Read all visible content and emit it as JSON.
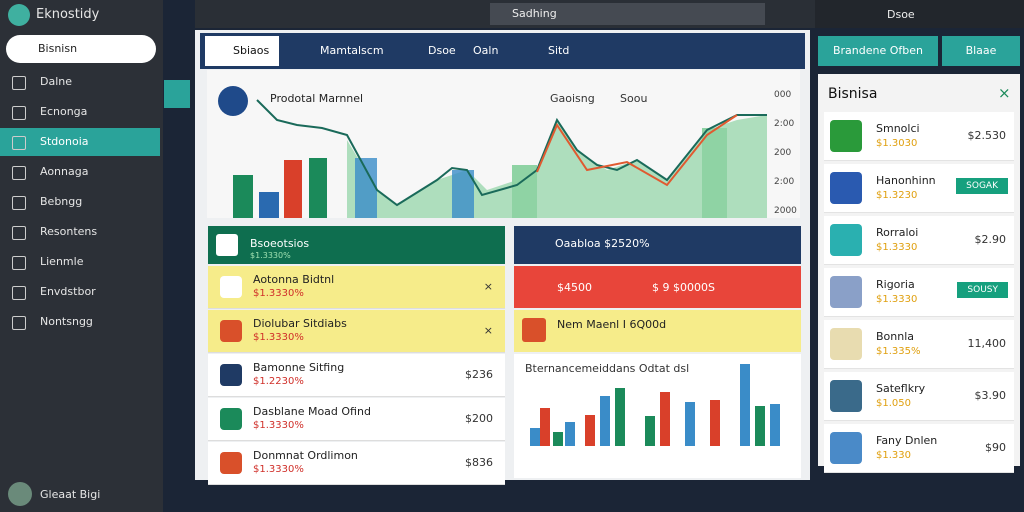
{
  "app": {
    "logo": "Eknostidy",
    "search": "Bisnisn",
    "user": "Gleaat Bigi",
    "menu": [
      "Dalne",
      "Ecnonga",
      "Stdonoia",
      "Aonnaga",
      "Bebngg",
      "Resontens",
      "Lienmle",
      "Envdstbor",
      "Nontsngg"
    ]
  },
  "topbar": {
    "search": "Sadhing",
    "user": "Dsoe"
  },
  "tabs": [
    "Sbiaos",
    "Mamtalscm",
    "Dsoe",
    "Oaln",
    "Sitd"
  ],
  "chart": {
    "title": "Prodotal Marnnel",
    "legend": [
      "Gaoisng",
      "Soou"
    ],
    "axis": [
      "000",
      "2:00",
      "200",
      "2:00",
      "2000"
    ]
  },
  "left_card": {
    "title": "Bsoeotsios",
    "subtitle": "$1.3330%",
    "rows": [
      {
        "name": "Aotonna Bidtnl",
        "sub": "$1.3330%"
      },
      {
        "name": "Diolubar Sitdiabs",
        "sub": "$1.3330%"
      },
      {
        "name": "Bamonne Sitfing",
        "sub": "$1.2230%",
        "price": "$236"
      },
      {
        "name": "Dasblane Moad Ofind",
        "sub": "$1.3330%",
        "price": "$200"
      },
      {
        "name": "Donmnat Ordlimon",
        "sub": "$1.3330%",
        "price": "$836"
      }
    ]
  },
  "right_card": {
    "title": "Oaabloa $2520%",
    "alert": "$4500",
    "alert_value": "$ 9 $0000S",
    "notice": "Nem Maenl I 6Q00d",
    "chart_title": "Bternancemeiddans Odtat dsl"
  },
  "side": {
    "buttons": [
      "Brandene Ofben",
      "Blaae"
    ],
    "title": "Bisnisa",
    "items": [
      {
        "name": "Smnolci",
        "sub": "$1.3030",
        "price": "$2.530"
      },
      {
        "name": "Hanonhinn",
        "sub": "$1.3230",
        "badge": "SOGAK"
      },
      {
        "name": "Rorraloi",
        "sub": "$1.3330",
        "price": "$2.90"
      },
      {
        "name": "Rigoria",
        "sub": "$1.3330",
        "badge": "SOUSY"
      },
      {
        "name": "Bonnla",
        "sub": "$1.335%",
        "price": "11,400"
      },
      {
        "name": "Sateflkry",
        "sub": "$1.050",
        "price": "$3.90"
      },
      {
        "name": "Fany Dnlen",
        "sub": "$1.330",
        "price": "$90"
      }
    ]
  }
}
